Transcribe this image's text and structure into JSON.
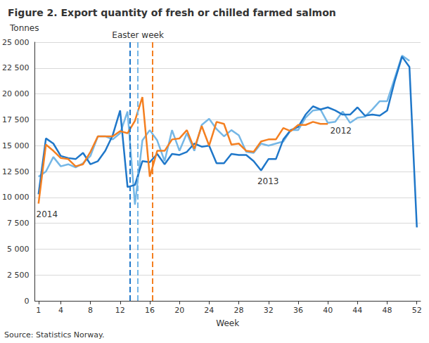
{
  "chart_data": {
    "type": "line",
    "title": "Figure 2. Export quantity of fresh or chilled farmed salmon",
    "x_label": "Week",
    "y_label": "Tonnes",
    "source": "Source: Statistics Norway.",
    "annotation": "Easter week",
    "grid": true,
    "x": [
      1,
      2,
      3,
      4,
      5,
      6,
      7,
      8,
      9,
      10,
      11,
      12,
      13,
      14,
      15,
      16,
      17,
      18,
      19,
      20,
      21,
      22,
      23,
      24,
      25,
      26,
      27,
      28,
      29,
      30,
      31,
      32,
      33,
      34,
      35,
      36,
      37,
      38,
      39,
      40,
      41,
      42,
      43,
      44,
      45,
      46,
      47,
      48,
      49,
      50,
      51,
      52
    ],
    "xlim": [
      0.5,
      52.5
    ],
    "xticks": [
      1,
      4,
      8,
      12,
      16,
      20,
      24,
      28,
      32,
      36,
      40,
      44,
      48,
      52
    ],
    "ylim": [
      0,
      25000
    ],
    "yticks": [
      0,
      {
        "value": 2500,
        "label": "2 500"
      },
      {
        "value": 5000,
        "label": "5 000"
      },
      {
        "value": 7500,
        "label": "7 500"
      },
      {
        "value": 10000,
        "label": "10 000"
      },
      {
        "value": 12500,
        "label": "12 500"
      },
      {
        "value": 15000,
        "label": "15 000"
      },
      {
        "value": 17500,
        "label": "17 500"
      },
      {
        "value": 20000,
        "label": "20 000"
      },
      {
        "value": 22500,
        "label": "22 500"
      },
      {
        "value": 25000,
        "label": "25 000"
      }
    ],
    "series": [
      {
        "name": "2012",
        "color": "#75b7e6",
        "easter_week": 14.4,
        "values": [
          12000,
          12500,
          13900,
          13000,
          13200,
          12900,
          13300,
          14000,
          15900,
          15900,
          15600,
          16200,
          18300,
          9300,
          15500,
          16500,
          15500,
          13500,
          16500,
          14500,
          16200,
          14500,
          17000,
          17600,
          16600,
          15900,
          16500,
          16000,
          14400,
          14300,
          15200,
          15000,
          15200,
          15400,
          16500,
          16500,
          17700,
          18400,
          18500,
          17200,
          17300,
          18300,
          17200,
          17700,
          17800,
          18500,
          19300,
          19300,
          21500,
          23700,
          23200,
          null
        ]
      },
      {
        "name": "2013",
        "color": "#1f77c9",
        "easter_week": 13.3,
        "values": [
          10300,
          15700,
          15200,
          14000,
          13800,
          13700,
          14300,
          13200,
          13500,
          14500,
          16000,
          18400,
          11000,
          11200,
          13500,
          13400,
          14200,
          13200,
          14200,
          14100,
          14400,
          15200,
          14900,
          15000,
          13300,
          13300,
          14200,
          14100,
          14100,
          13500,
          12600,
          13700,
          13700,
          15600,
          16500,
          16800,
          18000,
          18800,
          18500,
          18700,
          18400,
          18000,
          18000,
          18700,
          17900,
          18000,
          17900,
          18400,
          21200,
          23600,
          22600,
          7100
        ]
      },
      {
        "name": "2014",
        "color": "#f47f20",
        "easter_week": 16.4,
        "values": [
          9400,
          15100,
          14500,
          13800,
          13700,
          13000,
          13200,
          14400,
          15900,
          15900,
          15900,
          16400,
          16200,
          17400,
          19700,
          12000,
          14500,
          14500,
          15600,
          15700,
          16500,
          14700,
          16900,
          15000,
          17300,
          17100,
          15100,
          15200,
          14500,
          14400,
          15400,
          15600,
          15600,
          16700,
          16400,
          17000,
          17000,
          17300,
          17100,
          17100,
          null,
          null,
          null,
          null,
          null,
          null,
          null,
          null,
          null,
          null,
          null,
          null
        ]
      }
    ]
  }
}
